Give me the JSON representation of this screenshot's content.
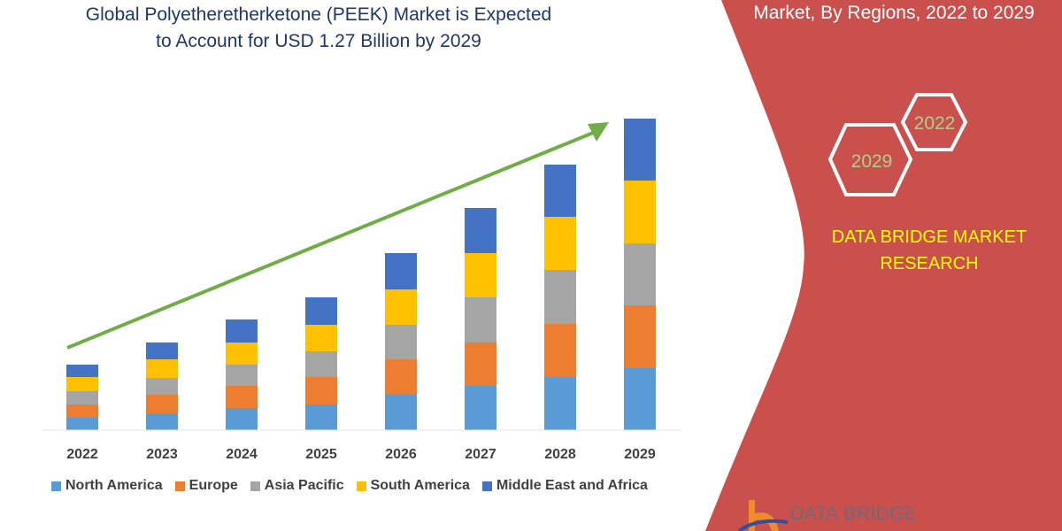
{
  "title_line1": "Global Polyetheretherketone (PEEK) Market is Expected",
  "title_line2": "to Account for USD 1.27 Billion by 2029",
  "right_panel": {
    "title": "Market, By Regions, 2022 to 2029",
    "hex_years": [
      "2022",
      "2029"
    ],
    "brand_line1": "DATA BRIDGE MARKET",
    "brand_line2": "RESEARCH",
    "logo_text": "DATA BRIDGE",
    "panel_color": "#c9504c",
    "brand_color": "#ffff00",
    "hex_text_color": "#a9d18e"
  },
  "chart_data": {
    "type": "bar",
    "stacked": true,
    "categories": [
      "2022",
      "2023",
      "2024",
      "2025",
      "2026",
      "2027",
      "2028",
      "2029"
    ],
    "series": [
      {
        "name": "North America",
        "color": "#5b9bd5",
        "values": [
          14,
          19,
          25,
          29,
          40,
          50,
          60,
          70
        ]
      },
      {
        "name": "Europe",
        "color": "#ed7d31",
        "values": [
          15,
          21,
          25,
          31,
          40,
          49,
          60,
          71
        ]
      },
      {
        "name": "Asia Pacific",
        "color": "#a5a5a5",
        "values": [
          15,
          19,
          24,
          29,
          39,
          51,
          61,
          70
        ]
      },
      {
        "name": "South America",
        "color": "#ffc000",
        "values": [
          16,
          21,
          25,
          30,
          40,
          50,
          60,
          71
        ]
      },
      {
        "name": "Middle East and Africa",
        "color": "#4472c4",
        "values": [
          14,
          19,
          26,
          31,
          41,
          51,
          59,
          70
        ]
      }
    ],
    "y_axis_shown": false,
    "grid": false,
    "legend_position": "bottom",
    "trend_arrow": {
      "color": "#70ad47",
      "direction": "up"
    }
  }
}
